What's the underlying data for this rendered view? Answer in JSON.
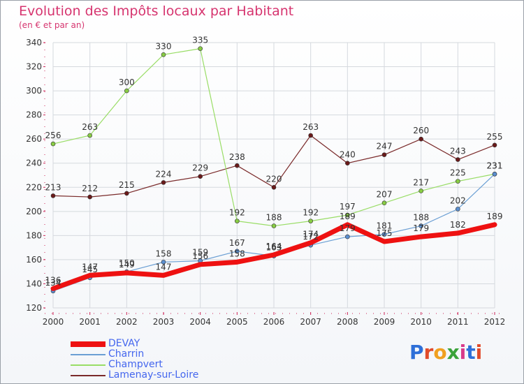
{
  "page": {
    "title": "Evolution des Impôts locaux par Habitant",
    "subtitle": "(en € et par an)",
    "logo_text": "Proxiti"
  },
  "chart_data": {
    "type": "line",
    "title": "Evolution des Impôts locaux par Habitant",
    "subtitle": "(en € et par an)",
    "xlabel": "",
    "ylabel": "",
    "x": [
      "2000",
      "2001",
      "2002",
      "2003",
      "2004",
      "2005",
      "2006",
      "2007",
      "2008",
      "2009",
      "2010",
      "2011",
      "2012"
    ],
    "ylim": [
      120,
      340
    ],
    "yticks": [
      120,
      140,
      160,
      180,
      200,
      220,
      240,
      260,
      280,
      300,
      320,
      340
    ],
    "grid": true,
    "legend_position": "bottom-left",
    "series": [
      {
        "name": "DEVAY",
        "color": "#ee1111",
        "width": 7,
        "marker": false,
        "values": [
          136,
          147,
          149,
          147,
          156,
          158,
          164,
          174,
          189,
          175,
          179,
          182,
          189
        ]
      },
      {
        "name": "Charrin",
        "color": "#6b9fd4",
        "width": 1.2,
        "marker": true,
        "marker_color": "#5b8fd0",
        "values": [
          134,
          145,
          150,
          158,
          159,
          167,
          163,
          172,
          179,
          181,
          188,
          202,
          231
        ]
      },
      {
        "name": "Champvert",
        "color": "#99dd66",
        "width": 1.2,
        "marker": true,
        "marker_color": "#88cc44",
        "values": [
          256,
          263,
          300,
          330,
          335,
          192,
          188,
          192,
          197,
          207,
          217,
          225,
          231
        ]
      },
      {
        "name": "Lamenay-sur-Loire",
        "color": "#7a2a2a",
        "width": 1.2,
        "marker": true,
        "marker_color": "#6a1a1a",
        "values": [
          213,
          212,
          215,
          224,
          229,
          238,
          220,
          263,
          240,
          247,
          260,
          243,
          255
        ]
      }
    ],
    "data_labels": [
      {
        "series": 0,
        "values": [
          "136",
          "147",
          "149",
          "147",
          "156",
          "158",
          "164",
          "174",
          "189",
          "175",
          "179",
          "182",
          "189"
        ]
      },
      {
        "series": 1,
        "values": [
          "134",
          "145",
          "150",
          "158",
          "159",
          "167",
          "163",
          "172",
          "179",
          "181",
          "188",
          "202",
          "231"
        ]
      },
      {
        "series": 2,
        "values": [
          "256",
          "263",
          "300",
          "330",
          "335",
          "192",
          "188",
          "192",
          "197",
          "207",
          "217",
          "225",
          "231"
        ]
      },
      {
        "series": 3,
        "values": [
          "213",
          "212",
          "215",
          "224",
          "229",
          "238",
          "220",
          "263",
          "240",
          "247",
          "260",
          "243",
          "255"
        ]
      }
    ]
  },
  "legend": {
    "items": [
      {
        "label": "DEVAY",
        "color": "#ee1111"
      },
      {
        "label": "Charrin",
        "color": "#6b9fd4"
      },
      {
        "label": "Champvert",
        "color": "#99dd66"
      },
      {
        "label": "Lamenay-sur-Loire",
        "color": "#7a2a2a"
      }
    ],
    "text_color": "#4466ee"
  }
}
